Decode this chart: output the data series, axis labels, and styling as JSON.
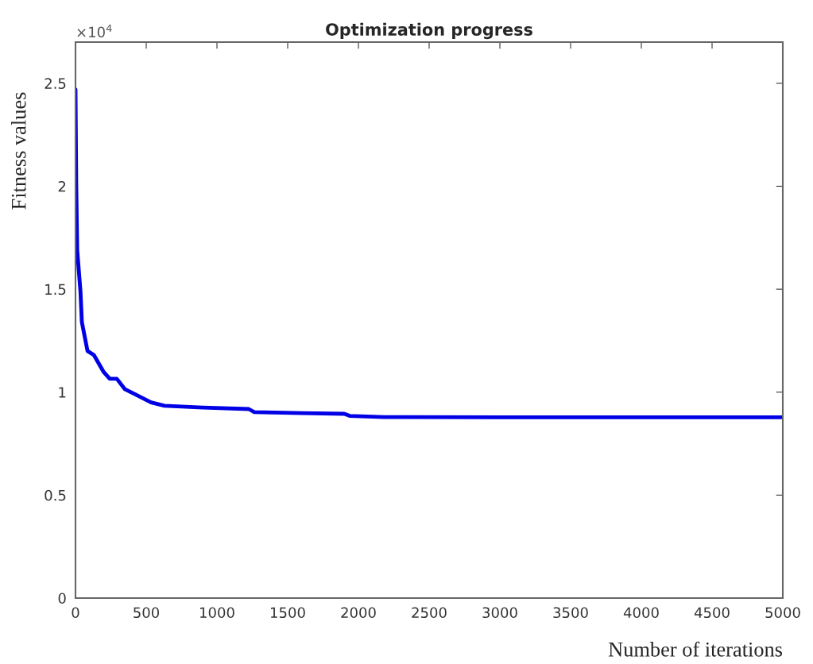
{
  "chart_data": {
    "type": "line",
    "title": "Optimization progress",
    "xlabel": "Number of iterations",
    "ylabel": "Fitness values",
    "annotations": [
      "×10$^{4}$"
    ],
    "x": [
      0,
      5,
      12,
      35,
      45,
      85,
      130,
      197,
      242,
      292,
      348,
      421,
      534,
      629,
      900,
      1225,
      1264,
      1600,
      1900,
      1938,
      2180,
      3000,
      4000,
      5000
    ],
    "series": [
      {
        "color": "#0000e6",
        "values": [
          2.47,
          2.01,
          1.69,
          1.49,
          1.34,
          1.2,
          1.18,
          1.1,
          1.065,
          1.065,
          1.015,
          0.99,
          0.95,
          0.934,
          0.925,
          0.918,
          0.903,
          0.898,
          0.895,
          0.885,
          0.879,
          0.878,
          0.878,
          0.878
        ]
      }
    ],
    "xlim": [
      0,
      5000
    ],
    "ylim": [
      0,
      2.7
    ],
    "xticks": [
      0,
      500,
      1000,
      1500,
      2000,
      2500,
      3000,
      3500,
      4000,
      4500,
      5000
    ],
    "yticks": [
      0,
      0.5,
      1,
      1.5,
      2,
      2.5
    ],
    "grid": false,
    "line_style": "solid",
    "marker": "none"
  }
}
